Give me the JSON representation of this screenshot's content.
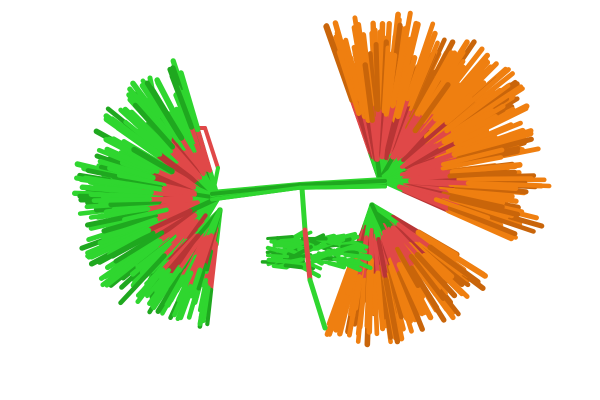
{
  "scene": {
    "background": "#ffffff",
    "colors": {
      "green": "#2fd62f",
      "green_dark": "#1fa81f",
      "red": "#e04848",
      "red_dark": "#b83535",
      "orange": "#ef7f10",
      "orange_dark": "#c9650a"
    },
    "icons": [
      "molecular-ensemble-rendering"
    ]
  }
}
